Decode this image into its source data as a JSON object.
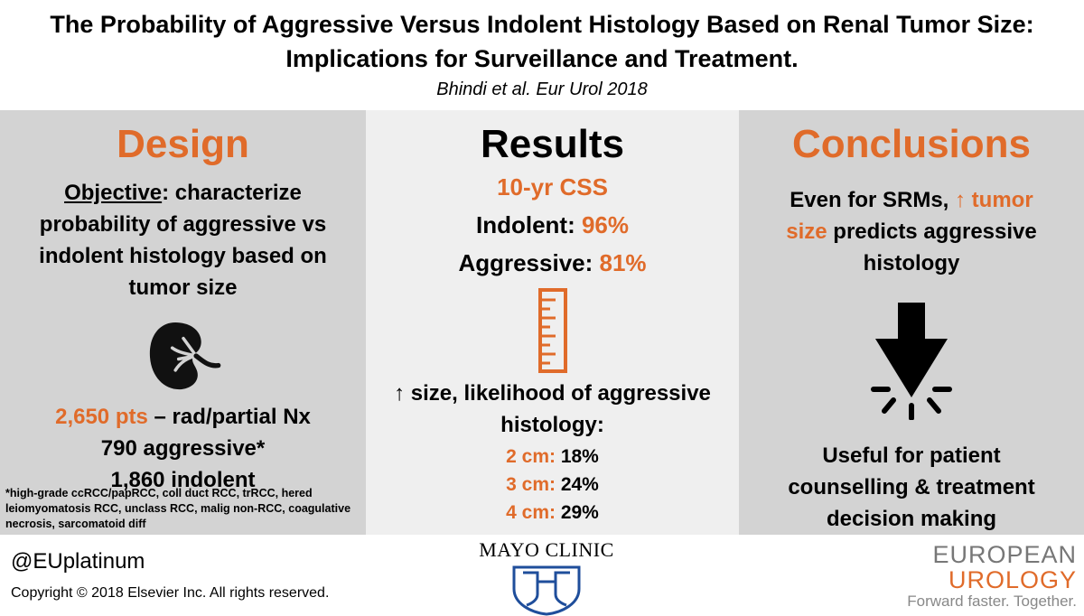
{
  "header": {
    "title_line1": "The Probability of Aggressive Versus Indolent Histology Based on Renal Tumor Size:",
    "title_line2": "Implications for Surveillance and Treatment.",
    "citation": "Bhindi et al. Eur Urol 2018"
  },
  "design": {
    "heading": "Design",
    "objective_label": "Objective",
    "objective_line1": ": characterize",
    "objective_line2": "probability of aggressive vs",
    "objective_line3": "indolent histology based on",
    "objective_line4": "tumor size",
    "icon": "kidney-icon",
    "pts_count": "2,650 pts",
    "pts_rest": " – rad/partial Nx",
    "aggressive": "790 aggressive*",
    "indolent": "1,860 indolent",
    "footnote_line1": "*high-grade ccRCC/papRCC, coll duct RCC, trRCC, hered",
    "footnote_line2": "leiomyomatosis RCC, unclass RCC, malig non-RCC, coagulative",
    "footnote_line3": "necrosis, sarcomatoid diff"
  },
  "results": {
    "heading": "Results",
    "css_label": "10-yr CSS",
    "indolent_label": "Indolent: ",
    "indolent_value": "96%",
    "aggressive_label": "Aggressive: ",
    "aggressive_value": "81%",
    "icon": "ruler-icon",
    "size_line1": "↑ size, likelihood of aggressive",
    "size_line2": "histology:",
    "rows": [
      {
        "size": "2 cm:",
        "pct": " 18%"
      },
      {
        "size": "3 cm:",
        "pct": " 24%"
      },
      {
        "size": "4 cm:",
        "pct": " 29%"
      }
    ]
  },
  "conclusions": {
    "heading": "Conclusions",
    "line1_a": "Even for SRMs, ",
    "line1_b": "↑ tumor",
    "line2_a": "size",
    "line2_b": " predicts aggressive",
    "line3": "histology",
    "icon": "impact-arrow-icon",
    "useful_line1": "Useful for patient",
    "useful_line2": "counselling & treatment",
    "useful_line3": "decision making"
  },
  "footer": {
    "handle": "@EUplatinum",
    "copyright": "Copyright © 2018 Elsevier Inc. All rights reserved.",
    "mayo": "MAYO CLINIC",
    "eu_line1": "EUROPEAN",
    "eu_line2": "UROLOGY",
    "eu_line3": "Forward faster. Together."
  },
  "colors": {
    "accent": "#e06b2a",
    "panel_dark": "#d3d3d3",
    "panel_light": "#efefef",
    "mayo_blue": "#1f4e9b"
  }
}
